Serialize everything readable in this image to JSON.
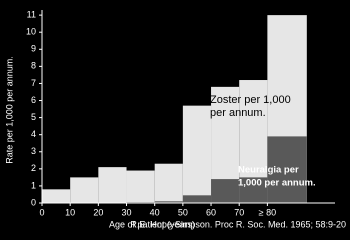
{
  "chart_data": {
    "type": "histogram",
    "x_label": "Age of patient (years)",
    "y_label": "Rate per 1,000 per annum.",
    "source": "R.E. Hope-Simpson. Proc R. Soc. Med. 1965; 58:9-20",
    "bins": [
      0,
      10,
      20,
      30,
      40,
      50,
      60,
      70,
      80,
      94
    ],
    "series": [
      {
        "name": "Zoster per 1,000 per annum.",
        "label_lines": [
          "Zoster per 1,000",
          "per annum."
        ],
        "color": "#e6e6e6",
        "values": [
          0.8,
          1.5,
          2.1,
          1.9,
          2.3,
          5.7,
          6.8,
          7.2,
          11
        ]
      },
      {
        "name": "Neuralgia per 1,000 per annum.",
        "label_lines": [
          "Neuralgia per",
          "1,000 per annum."
        ],
        "color": "#595959",
        "values": [
          0,
          0,
          0,
          0.05,
          0.1,
          0.45,
          1.4,
          1.5,
          3.9
        ]
      }
    ],
    "xlim": [
      0,
      104
    ],
    "ylim": [
      0,
      11.3
    ],
    "xticks": [
      0,
      10,
      20,
      30,
      40,
      50,
      60,
      70,
      {
        "value": 80,
        "label": "≥ 80"
      }
    ],
    "yticks": [
      0,
      1,
      2,
      3,
      4,
      5,
      6,
      7,
      8,
      9,
      10,
      11
    ]
  }
}
